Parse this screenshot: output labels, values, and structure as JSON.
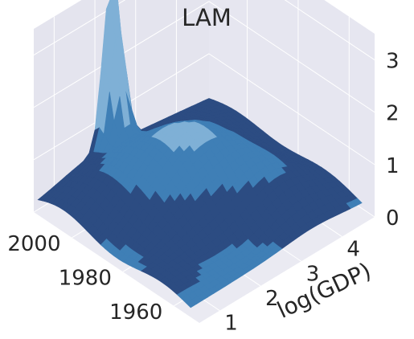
{
  "chart_data": {
    "type": "surface",
    "title": "LAM",
    "xlabel": "",
    "ylabel": "log(GDP)",
    "zlabel": "",
    "x_ticks": [
      "1960",
      "1980",
      "2000"
    ],
    "y_ticks": [
      "1",
      "2",
      "3",
      "4"
    ],
    "z_ticks": [
      "0",
      "1",
      "2",
      "3"
    ],
    "x_range": [
      1950,
      2015
    ],
    "y_range": [
      0.5,
      4.8
    ],
    "z_range": [
      0,
      3.5
    ],
    "grid": true,
    "colormap_levels": [
      {
        "below": 0.15,
        "color": "#3f7fb6"
      },
      {
        "below": 0.7,
        "color": "#2c4c82"
      },
      {
        "below": 1.2,
        "color": "#3f7fb6"
      },
      {
        "below": 9.0,
        "color": "#7fb0d6"
      }
    ],
    "background_color": "#eaeaf2",
    "grid_color": "#ffffff",
    "text_color": "#262626"
  }
}
